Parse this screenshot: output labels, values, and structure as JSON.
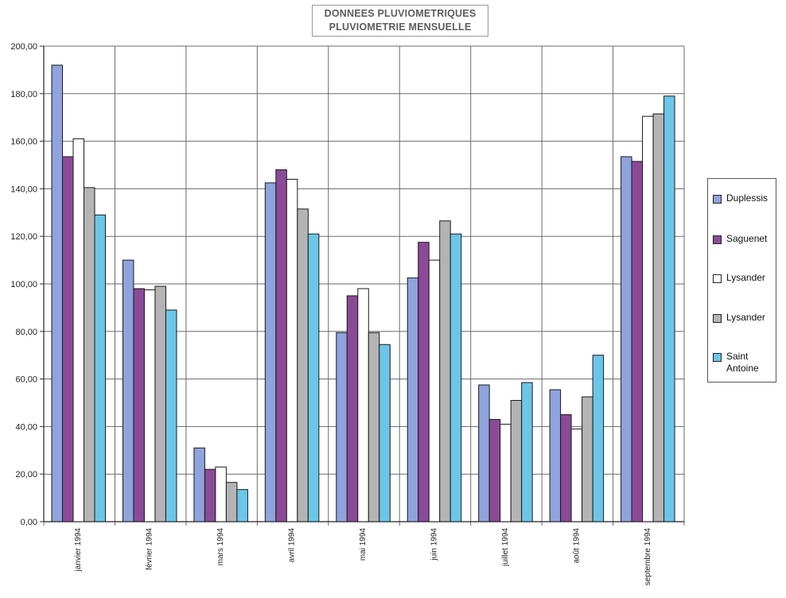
{
  "chart_data": {
    "type": "bar",
    "title": "DONNEES PLUVIOMETRIQUES",
    "subtitle": "PLUVIOMETRIE MENSUELLE",
    "categories": [
      "janvier 1994",
      "février 1994",
      "mars 1994",
      "avril 1994",
      "mai 1994",
      "juin 1994",
      "juillet 1994",
      "août 1994",
      "septembre 1994"
    ],
    "yticks": [
      "0,00",
      "20,00",
      "40,00",
      "60,00",
      "80,00",
      "100,00",
      "120,00",
      "140,00",
      "160,00",
      "180,00",
      "200,00"
    ],
    "ylim": [
      0,
      200
    ],
    "grid": true,
    "legend_position": "right",
    "series": [
      {
        "name": "Duplessis",
        "color": "#8fa3dc",
        "values": [
          192,
          110,
          31,
          142.5,
          79.5,
          102.5,
          57.5,
          55.5,
          153.5
        ]
      },
      {
        "name": "Saguenet",
        "color": "#8b4a98",
        "values": [
          153.5,
          98,
          22,
          148,
          95,
          117.5,
          43,
          45,
          151.5
        ]
      },
      {
        "name": "Lysander",
        "color": "#ffffff",
        "values": [
          161,
          97.5,
          23,
          144,
          98,
          110,
          41,
          39,
          170.5
        ]
      },
      {
        "name": "Lysander",
        "color": "#b4b4b4",
        "values": [
          140.5,
          99,
          16.5,
          131.5,
          79.5,
          126.5,
          51,
          52.5,
          171.5
        ]
      },
      {
        "name": "Saint Antoine",
        "color": "#6cc6e8",
        "values": [
          129,
          89,
          13.5,
          121,
          74.5,
          121,
          58.5,
          70,
          179
        ]
      }
    ]
  }
}
